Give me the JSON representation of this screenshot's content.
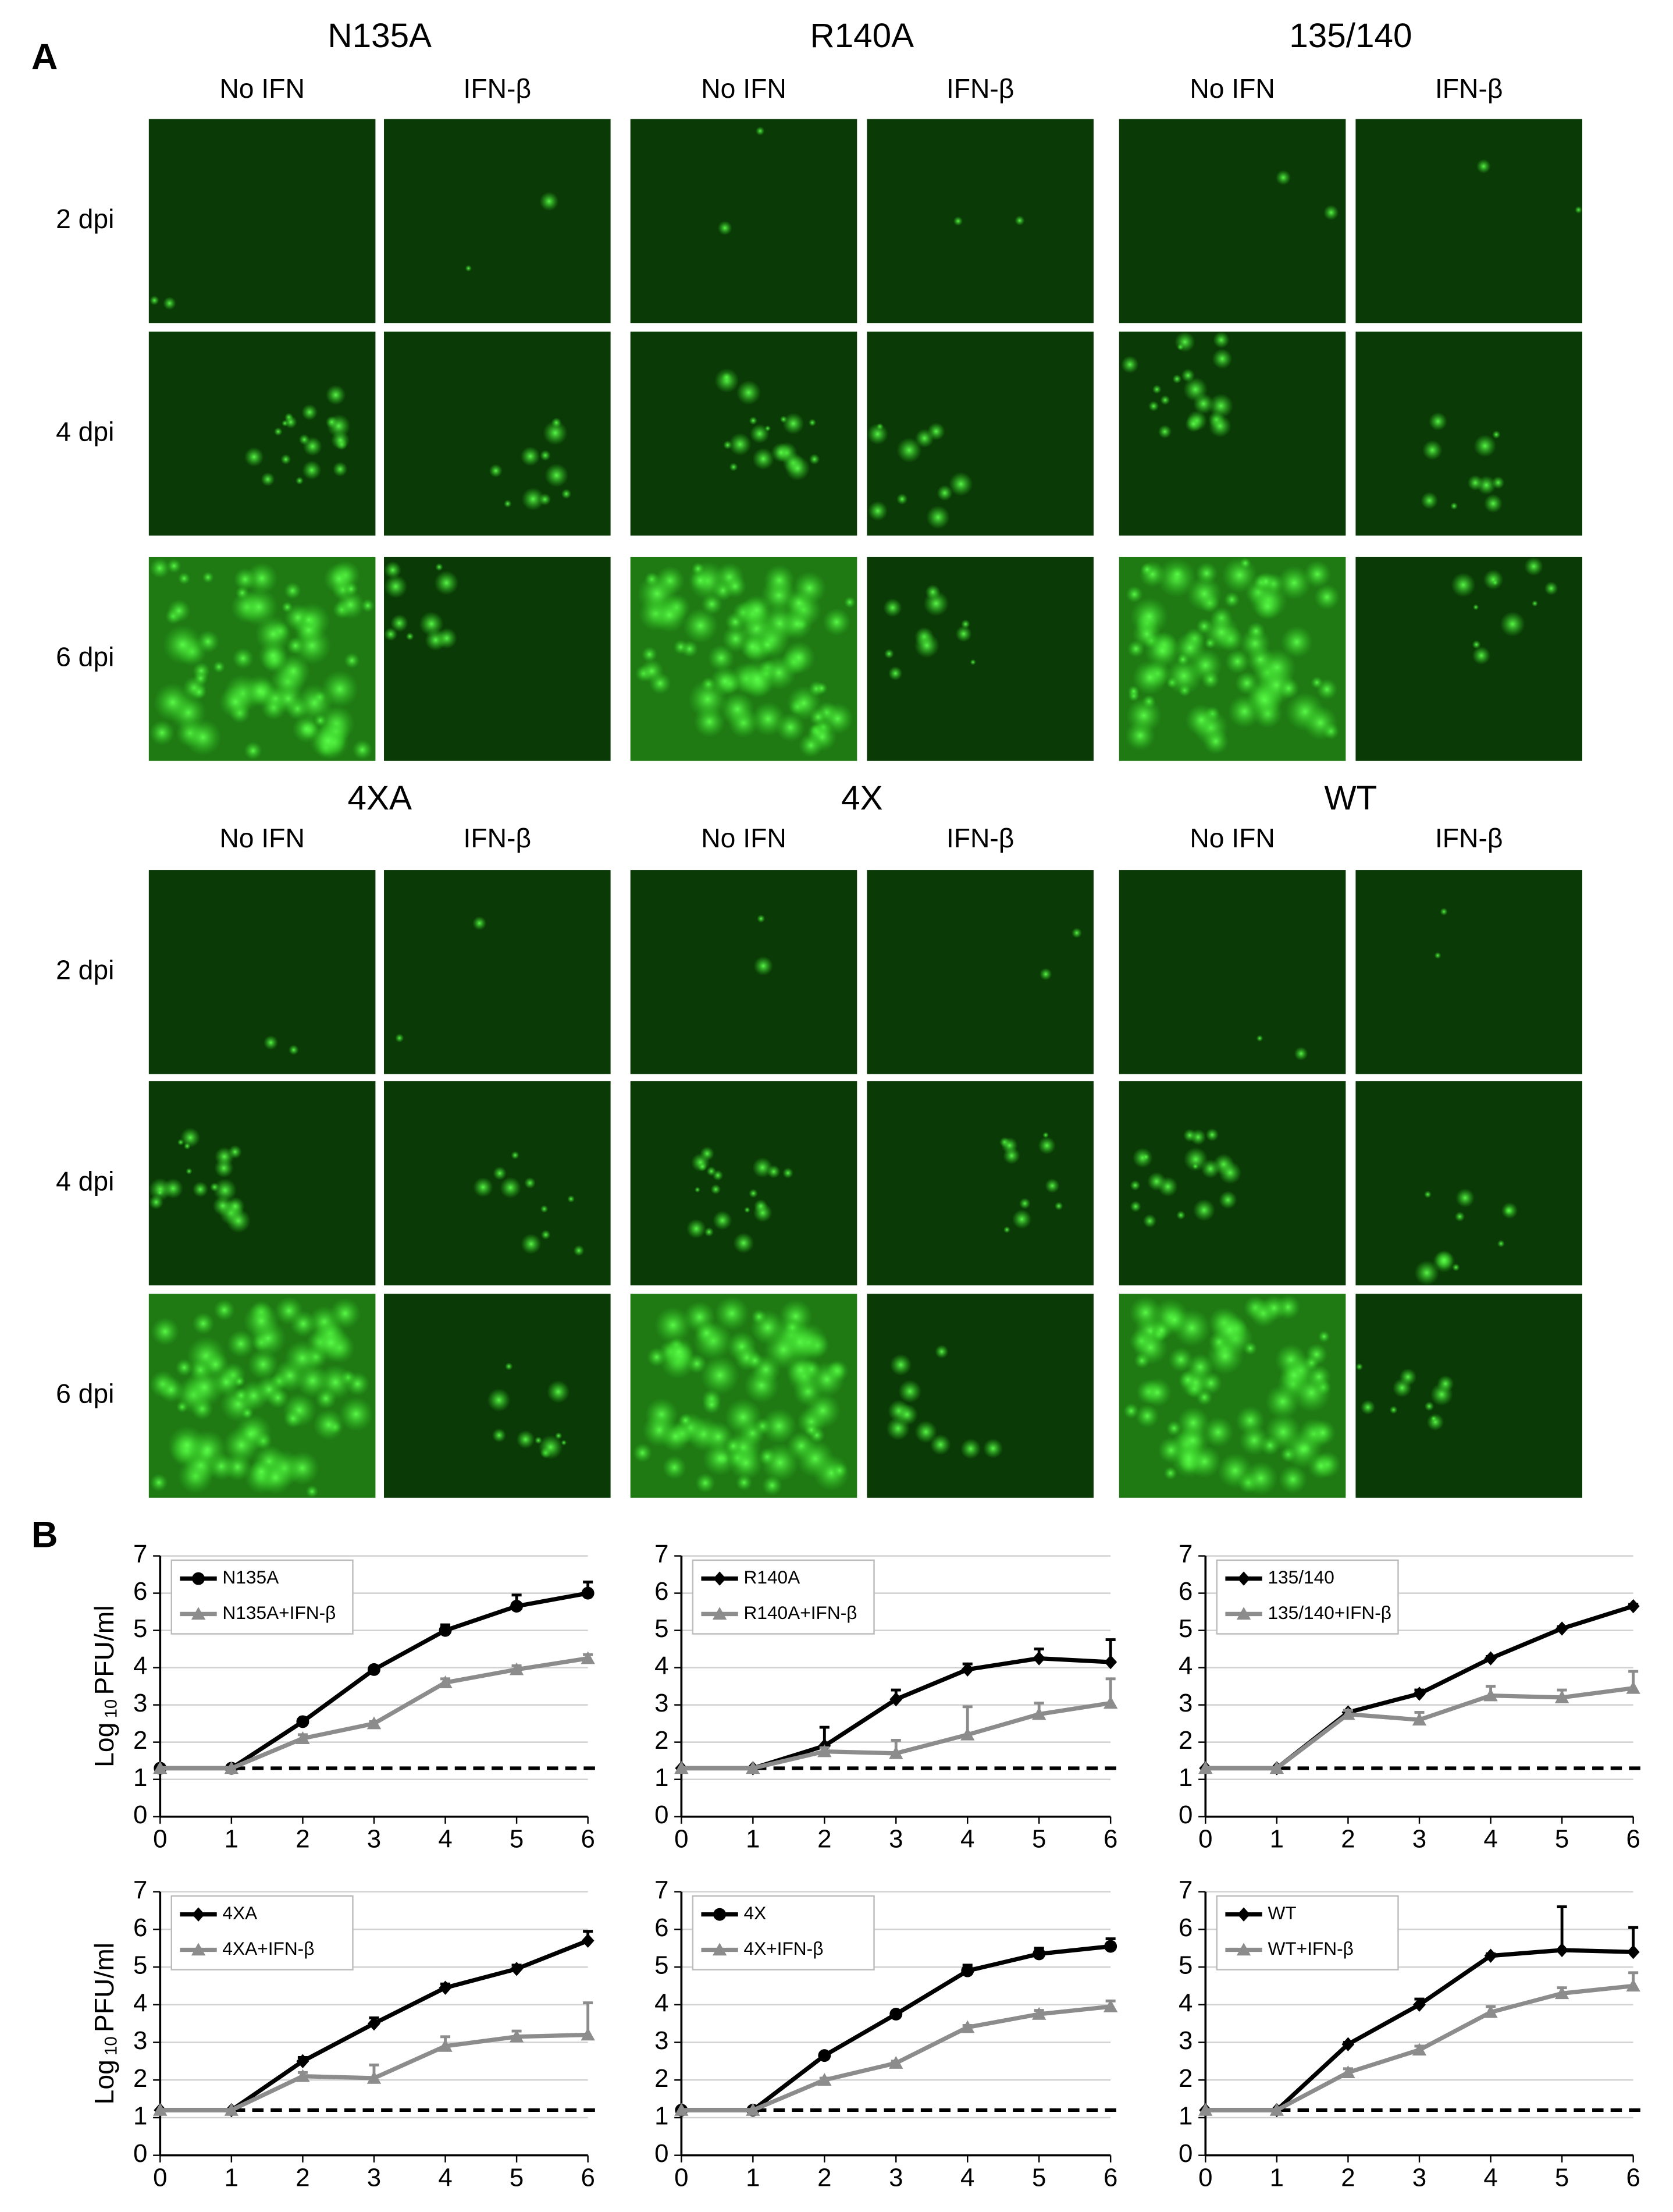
{
  "panel_a": {
    "label": "A",
    "timepoints": [
      "2 dpi",
      "4 dpi",
      "6 dpi"
    ],
    "groups": [
      {
        "title": "N135A",
        "conditions": [
          "No IFN",
          "IFN-β"
        ]
      },
      {
        "title": "R140A",
        "conditions": [
          "No IFN",
          "IFN-β"
        ]
      },
      {
        "title": "135/140",
        "conditions": [
          "No IFN",
          "IFN-β"
        ]
      },
      {
        "title": "4XA",
        "conditions": [
          "No IFN",
          "IFN-β"
        ]
      },
      {
        "title": "4X",
        "conditions": [
          "No IFN",
          "IFN-β"
        ]
      },
      {
        "title": "WT",
        "conditions": [
          "No IFN",
          "IFN-β"
        ]
      }
    ]
  },
  "panel_b": {
    "label": "B"
  },
  "chart_data": [
    {
      "type": "line",
      "y_label": [
        "Log",
        "10",
        "PFU/ml"
      ],
      "x": [
        0,
        1,
        2,
        3,
        4,
        5,
        6
      ],
      "xlim": [
        0,
        6
      ],
      "xticks": [
        0,
        1,
        2,
        3,
        4,
        5,
        6
      ],
      "ylim": [
        0,
        7
      ],
      "yticks": [
        0,
        1,
        2,
        3,
        4,
        5,
        6,
        7
      ],
      "grid": true,
      "detection_limit": 1.3,
      "series": [
        {
          "name": "N135A",
          "color": "#000000",
          "marker": "circle",
          "values": [
            1.3,
            1.3,
            2.55,
            3.95,
            5.0,
            5.65,
            6.0
          ],
          "errors": [
            0,
            0,
            0.05,
            0.05,
            0.15,
            0.3,
            0.3
          ]
        },
        {
          "name": "N135A+IFN-β",
          "color": "#8c8c8c",
          "marker": "triangle",
          "values": [
            1.3,
            1.3,
            2.1,
            2.5,
            3.6,
            3.95,
            4.25
          ],
          "errors": [
            0,
            0,
            0.1,
            0.05,
            0.1,
            0.1,
            0.1
          ]
        }
      ]
    },
    {
      "type": "line",
      "x": [
        0,
        1,
        2,
        3,
        4,
        5,
        6
      ],
      "xlim": [
        0,
        6
      ],
      "xticks": [
        0,
        1,
        2,
        3,
        4,
        5,
        6
      ],
      "ylim": [
        0,
        7
      ],
      "yticks": [
        0,
        1,
        2,
        3,
        4,
        5,
        6,
        7
      ],
      "grid": true,
      "detection_limit": 1.3,
      "series": [
        {
          "name": "R140A",
          "color": "#000000",
          "marker": "diamond",
          "values": [
            1.3,
            1.3,
            1.9,
            3.15,
            3.95,
            4.25,
            4.15
          ],
          "errors": [
            0,
            0,
            0.5,
            0.25,
            0.15,
            0.25,
            0.6
          ]
        },
        {
          "name": "R140A+IFN-β",
          "color": "#8c8c8c",
          "marker": "triangle",
          "values": [
            1.3,
            1.3,
            1.75,
            1.7,
            2.2,
            2.75,
            3.05
          ],
          "errors": [
            0,
            0,
            0.1,
            0.35,
            0.75,
            0.3,
            0.65
          ]
        }
      ]
    },
    {
      "type": "line",
      "x": [
        0,
        1,
        2,
        3,
        4,
        5,
        6
      ],
      "xlim": [
        0,
        6
      ],
      "xticks": [
        0,
        1,
        2,
        3,
        4,
        5,
        6
      ],
      "ylim": [
        0,
        7
      ],
      "yticks": [
        0,
        1,
        2,
        3,
        4,
        5,
        6,
        7
      ],
      "grid": true,
      "detection_limit": 1.3,
      "series": [
        {
          "name": "135/140",
          "color": "#000000",
          "marker": "diamond",
          "values": [
            1.3,
            1.3,
            2.8,
            3.3,
            4.25,
            5.05,
            5.65
          ],
          "errors": [
            0,
            0,
            0.05,
            0.1,
            0.05,
            0.05,
            0.05
          ]
        },
        {
          "name": "135/140+IFN-β",
          "color": "#8c8c8c",
          "marker": "triangle",
          "values": [
            1.3,
            1.3,
            2.75,
            2.6,
            3.25,
            3.2,
            3.45
          ],
          "errors": [
            0,
            0,
            0.1,
            0.2,
            0.25,
            0.2,
            0.45
          ]
        }
      ]
    },
    {
      "type": "line",
      "y_label": [
        "Log",
        "10",
        "PFU/ml"
      ],
      "x": [
        0,
        1,
        2,
        3,
        4,
        5,
        6
      ],
      "xlim": [
        0,
        6
      ],
      "xticks": [
        0,
        1,
        2,
        3,
        4,
        5,
        6
      ],
      "ylim": [
        0,
        7
      ],
      "yticks": [
        0,
        1,
        2,
        3,
        4,
        5,
        6,
        7
      ],
      "grid": true,
      "detection_limit": 1.2,
      "series": [
        {
          "name": "4XA",
          "color": "#000000",
          "marker": "diamond",
          "values": [
            1.2,
            1.2,
            2.5,
            3.5,
            4.45,
            4.95,
            5.7
          ],
          "errors": [
            0,
            0,
            0.1,
            0.15,
            0.1,
            0.1,
            0.25
          ]
        },
        {
          "name": "4XA+IFN-β",
          "color": "#8c8c8c",
          "marker": "triangle",
          "values": [
            1.2,
            1.2,
            2.1,
            2.05,
            2.9,
            3.15,
            3.2
          ],
          "errors": [
            0,
            0,
            0.1,
            0.35,
            0.25,
            0.15,
            0.85
          ]
        }
      ]
    },
    {
      "type": "line",
      "x": [
        0,
        1,
        2,
        3,
        4,
        5,
        6
      ],
      "xlim": [
        0,
        6
      ],
      "xticks": [
        0,
        1,
        2,
        3,
        4,
        5,
        6
      ],
      "ylim": [
        0,
        7
      ],
      "yticks": [
        0,
        1,
        2,
        3,
        4,
        5,
        6,
        7
      ],
      "grid": true,
      "detection_limit": 1.2,
      "series": [
        {
          "name": "4X",
          "color": "#000000",
          "marker": "circle",
          "values": [
            1.2,
            1.2,
            2.65,
            3.75,
            4.9,
            5.35,
            5.55
          ],
          "errors": [
            0,
            0,
            0.05,
            0.05,
            0.15,
            0.15,
            0.2
          ]
        },
        {
          "name": "4X+IFN-β",
          "color": "#8c8c8c",
          "marker": "triangle",
          "values": [
            1.2,
            1.2,
            2.0,
            2.45,
            3.4,
            3.75,
            3.95
          ],
          "errors": [
            0,
            0,
            0.05,
            0.05,
            0.05,
            0.1,
            0.15
          ]
        }
      ]
    },
    {
      "type": "line",
      "x": [
        0,
        1,
        2,
        3,
        4,
        5,
        6
      ],
      "xlim": [
        0,
        6
      ],
      "xticks": [
        0,
        1,
        2,
        3,
        4,
        5,
        6
      ],
      "ylim": [
        0,
        7
      ],
      "yticks": [
        0,
        1,
        2,
        3,
        4,
        5,
        6,
        7
      ],
      "grid": true,
      "detection_limit": 1.2,
      "series": [
        {
          "name": "WT",
          "color": "#000000",
          "marker": "diamond",
          "values": [
            1.2,
            1.2,
            2.95,
            4.0,
            5.3,
            5.45,
            5.4
          ],
          "errors": [
            0,
            0,
            0.05,
            0.15,
            0.05,
            1.15,
            0.65
          ]
        },
        {
          "name": "WT+IFN-β",
          "color": "#8c8c8c",
          "marker": "triangle",
          "values": [
            1.2,
            1.2,
            2.2,
            2.8,
            3.8,
            4.3,
            4.5
          ],
          "errors": [
            0,
            0,
            0.1,
            0.1,
            0.15,
            0.15,
            0.35
          ]
        }
      ]
    }
  ]
}
